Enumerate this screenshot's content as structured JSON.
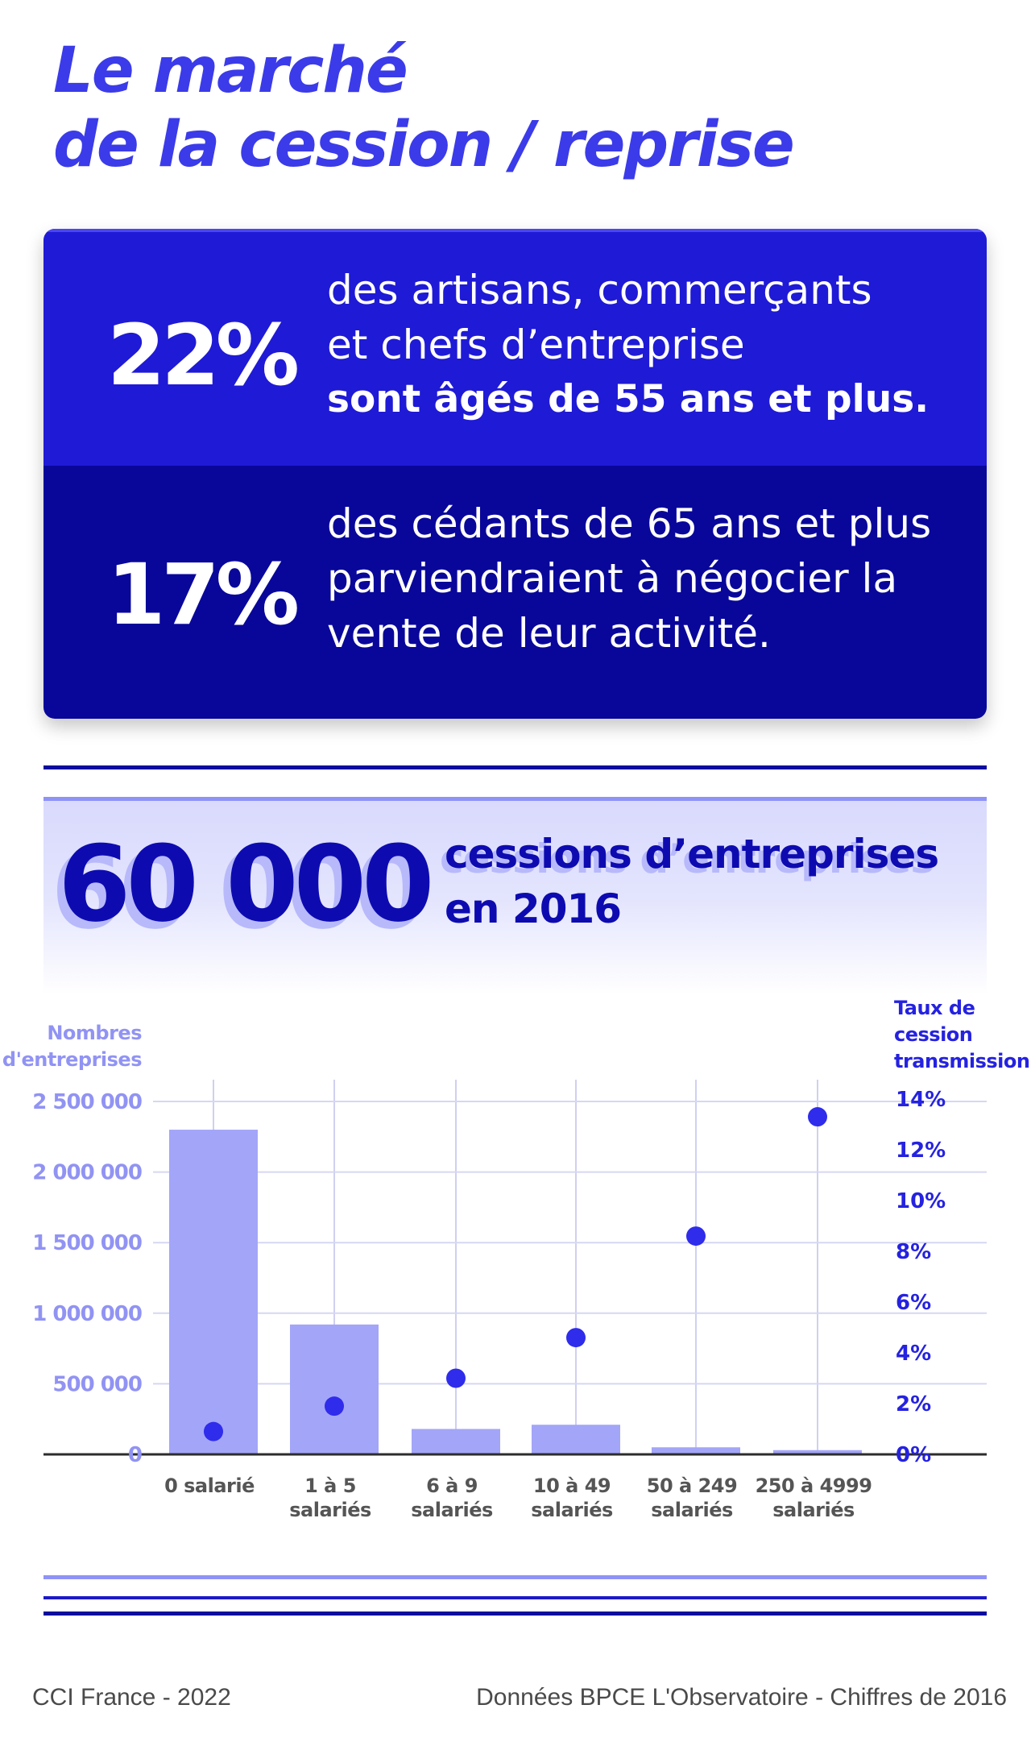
{
  "title": [
    "Le marché",
    "de la cession / reprise"
  ],
  "stats": [
    {
      "value": "22%",
      "lines": [
        "des artisans, commerçants",
        "et chefs d’entreprise"
      ],
      "bold_line": "sont âgés de 55 ans et plus."
    },
    {
      "value": "17%",
      "lines": [
        "des cédants de 65 ans et plus",
        "parviendraient à négocier la",
        "vente de leur activité."
      ],
      "bold_line": ""
    }
  ],
  "headline": {
    "number": "60 000",
    "caption": [
      "cessions d’entreprises",
      "en 2016"
    ]
  },
  "colors": {
    "title": "#3b3bea",
    "card_top": "#1f1ad6",
    "card_bottom": "#09079a",
    "headline": "#0d0bb0",
    "bars": "#a3a5f8",
    "dots": "#2f2cec",
    "left_axis_text": "#9193f3",
    "right_axis_text": "#2522e0"
  },
  "chart_data": {
    "type": "bar",
    "categories": [
      "0 salarié",
      "1 à 5 salariés",
      "6 à 9 salariés",
      "10 à 49 salariés",
      "50 à 249 salariés",
      "250 à 4999 salariés"
    ],
    "category_lines": [
      [
        "0 salarié"
      ],
      [
        "1 à 5",
        "salariés"
      ],
      [
        "6 à 9",
        "salariés"
      ],
      [
        "10 à 49",
        "salariés"
      ],
      [
        "50 à 249",
        "salariés"
      ],
      [
        "250 à 4999",
        "salariés"
      ]
    ],
    "ylabel_left": [
      "Nombres",
      "d'entreprises"
    ],
    "ylabel_right": [
      "Taux de",
      "cession",
      "transmission"
    ],
    "left_ticks": [
      0,
      500000,
      1000000,
      1500000,
      2000000,
      2500000
    ],
    "left_tick_labels": [
      "0",
      "500 000",
      "1 000 000",
      "1 500 000",
      "2 000 000",
      "2 500 000"
    ],
    "right_ticks": [
      0,
      2,
      4,
      6,
      8,
      10,
      12,
      14
    ],
    "right_tick_labels": [
      "0%",
      "2%",
      "4%",
      "6%",
      "8%",
      "10%",
      "12%",
      "14%"
    ],
    "ylim_left": [
      0,
      2500000
    ],
    "ylim_right": [
      0,
      14
    ],
    "series": [
      {
        "type": "bar",
        "axis": "left",
        "values": [
          2300000,
          920000,
          180000,
          210000,
          50000,
          30000
        ]
      },
      {
        "type": "scatter",
        "axis": "right",
        "values": [
          0.9,
          1.9,
          3.0,
          4.6,
          8.6,
          13.3
        ]
      }
    ],
    "grid": true
  },
  "footer": {
    "left": "CCI France - 2022",
    "right": "Données BPCE L'Observatoire - Chiffres de 2016"
  }
}
